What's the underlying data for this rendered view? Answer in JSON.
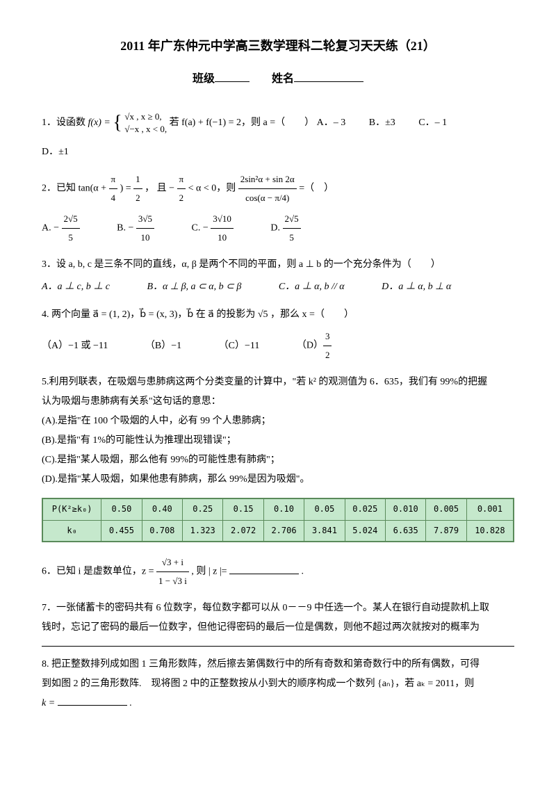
{
  "title": "2011 年广东仲元中学高三数学理科二轮复习天天练（21）",
  "header": {
    "class_label": "班级",
    "name_label": "姓名"
  },
  "q1": {
    "stem_a": "1．设函数 ",
    "func": "f(x) =",
    "case1": "√x  , x ≥ 0,",
    "case2": "√−x , x < 0,",
    "stem_b": " 若 f(a) + f(−1) = 2，则 a =（　　）",
    "optA": "A．– 3",
    "optB": "B．±3",
    "optC": "C．– 1",
    "optD": "D．±1"
  },
  "q2": {
    "stem_a": "2．已知 tan(α + ",
    "frac1n": "π",
    "frac1d": "4",
    "stem_b": ") = ",
    "frac2n": "1",
    "frac2d": "2",
    "stem_c": "， 且 − ",
    "frac3n": "π",
    "frac3d": "2",
    "stem_d": " < α < 0，则 ",
    "bigfracn": "2sin²α + sin 2α",
    "bigfracd": "cos(α − π/4)",
    "stem_e": " =（　）",
    "optA_pre": "A. − ",
    "optA_n": "2√5",
    "optA_d": "5",
    "optB_pre": "B. − ",
    "optB_n": "3√5",
    "optB_d": "10",
    "optC_pre": "C. − ",
    "optC_n": "3√10",
    "optC_d": "10",
    "optD_pre": "D. ",
    "optD_n": "2√5",
    "optD_d": "5"
  },
  "q3": {
    "stem": "3．设 a, b, c 是三条不同的直线，α, β 是两个不同的平面，则 a ⊥ b 的一个充分条件为（　　）",
    "optA": "A．a ⊥ c, b ⊥ c",
    "optB": "B．α ⊥ β, a ⊂ α, b ⊂ β",
    "optC": "C．a ⊥ α, b // α",
    "optD": "D．a ⊥ α, b ⊥ α"
  },
  "q4": {
    "stem": "4. 两个向量 a⃗ = (1, 2)，b⃗ = (x, 3)，b⃗ 在 a⃗ 的投影为 √5 ，那么 x =（　　）",
    "optA": "（A）−1 或 −11",
    "optB": "（B）−1",
    "optC": "（C）−11",
    "optD_pre": "（D）",
    "optD_n": "3",
    "optD_d": "2"
  },
  "q5": {
    "stem1": "5.利用列联表，在吸烟与患肺病这两个分类变量的计算中，\"若 k² 的观测值为 6．635，我们有 99%的把握",
    "stem2": "认为吸烟与患肺病有关系\"这句话的意思：",
    "optA": "(A).是指\"在 100 个吸烟的人中，必有 99 个人患肺病；",
    "optB": "(B).是指\"有 1%的可能性认为推理出现错误\"；",
    "optC": "(C).是指\"某人吸烟，那么他有 99%的可能性患有肺病\"；",
    "optD": "(D).是指\"某人吸烟，如果他患有肺病，那么 99%是因为吸烟\"。"
  },
  "table": {
    "row1_label": "P(K²≥k₀)",
    "row1": [
      "0.50",
      "0.40",
      "0.25",
      "0.15",
      "0.10",
      "0.05",
      "0.025",
      "0.010",
      "0.005",
      "0.001"
    ],
    "row2_label": "k₀",
    "row2": [
      "0.455",
      "0.708",
      "1.323",
      "2.072",
      "2.706",
      "3.841",
      "5.024",
      "6.635",
      "7.879",
      "10.828"
    ],
    "bg_color": "#c5e8cc",
    "border_color": "#5a8a5a",
    "font_family": "monospace",
    "font_size": 12
  },
  "q6": {
    "stem_a": "6．已知 i 是虚数单位，z = ",
    "num": "√3 + i",
    "den": "1 − √3 i",
    "stem_b": ", 则 | z |= ",
    "stem_c": " ."
  },
  "q7": {
    "line1": "7．一张储蓄卡的密码共有 6 位数字，每位数字都可以从 0－－9 中任选一个。某人在银行自动提款机上取",
    "line2": "钱时，忘记了密码的最后一位数字，但他记得密码的最后一位是偶数，则他不超过两次就按对的概率为"
  },
  "q8": {
    "line1": "8.  把正整数排列成如图 1 三角形数阵，然后擦去第偶数行中的所有奇数和第奇数行中的所有偶数，可得",
    "line2": "到如图 2 的三角形数阵.　现将图 2 中的正整数按从小到大的顺序构成一个数列 {aₙ}，若 aₖ = 2011，则",
    "line3_a": "k = ",
    "line3_b": "."
  },
  "styling": {
    "body_width": 800,
    "body_height": 1132,
    "base_font_size": 14,
    "title_font_size": 18,
    "text_color": "#000000",
    "background_color": "#ffffff"
  }
}
